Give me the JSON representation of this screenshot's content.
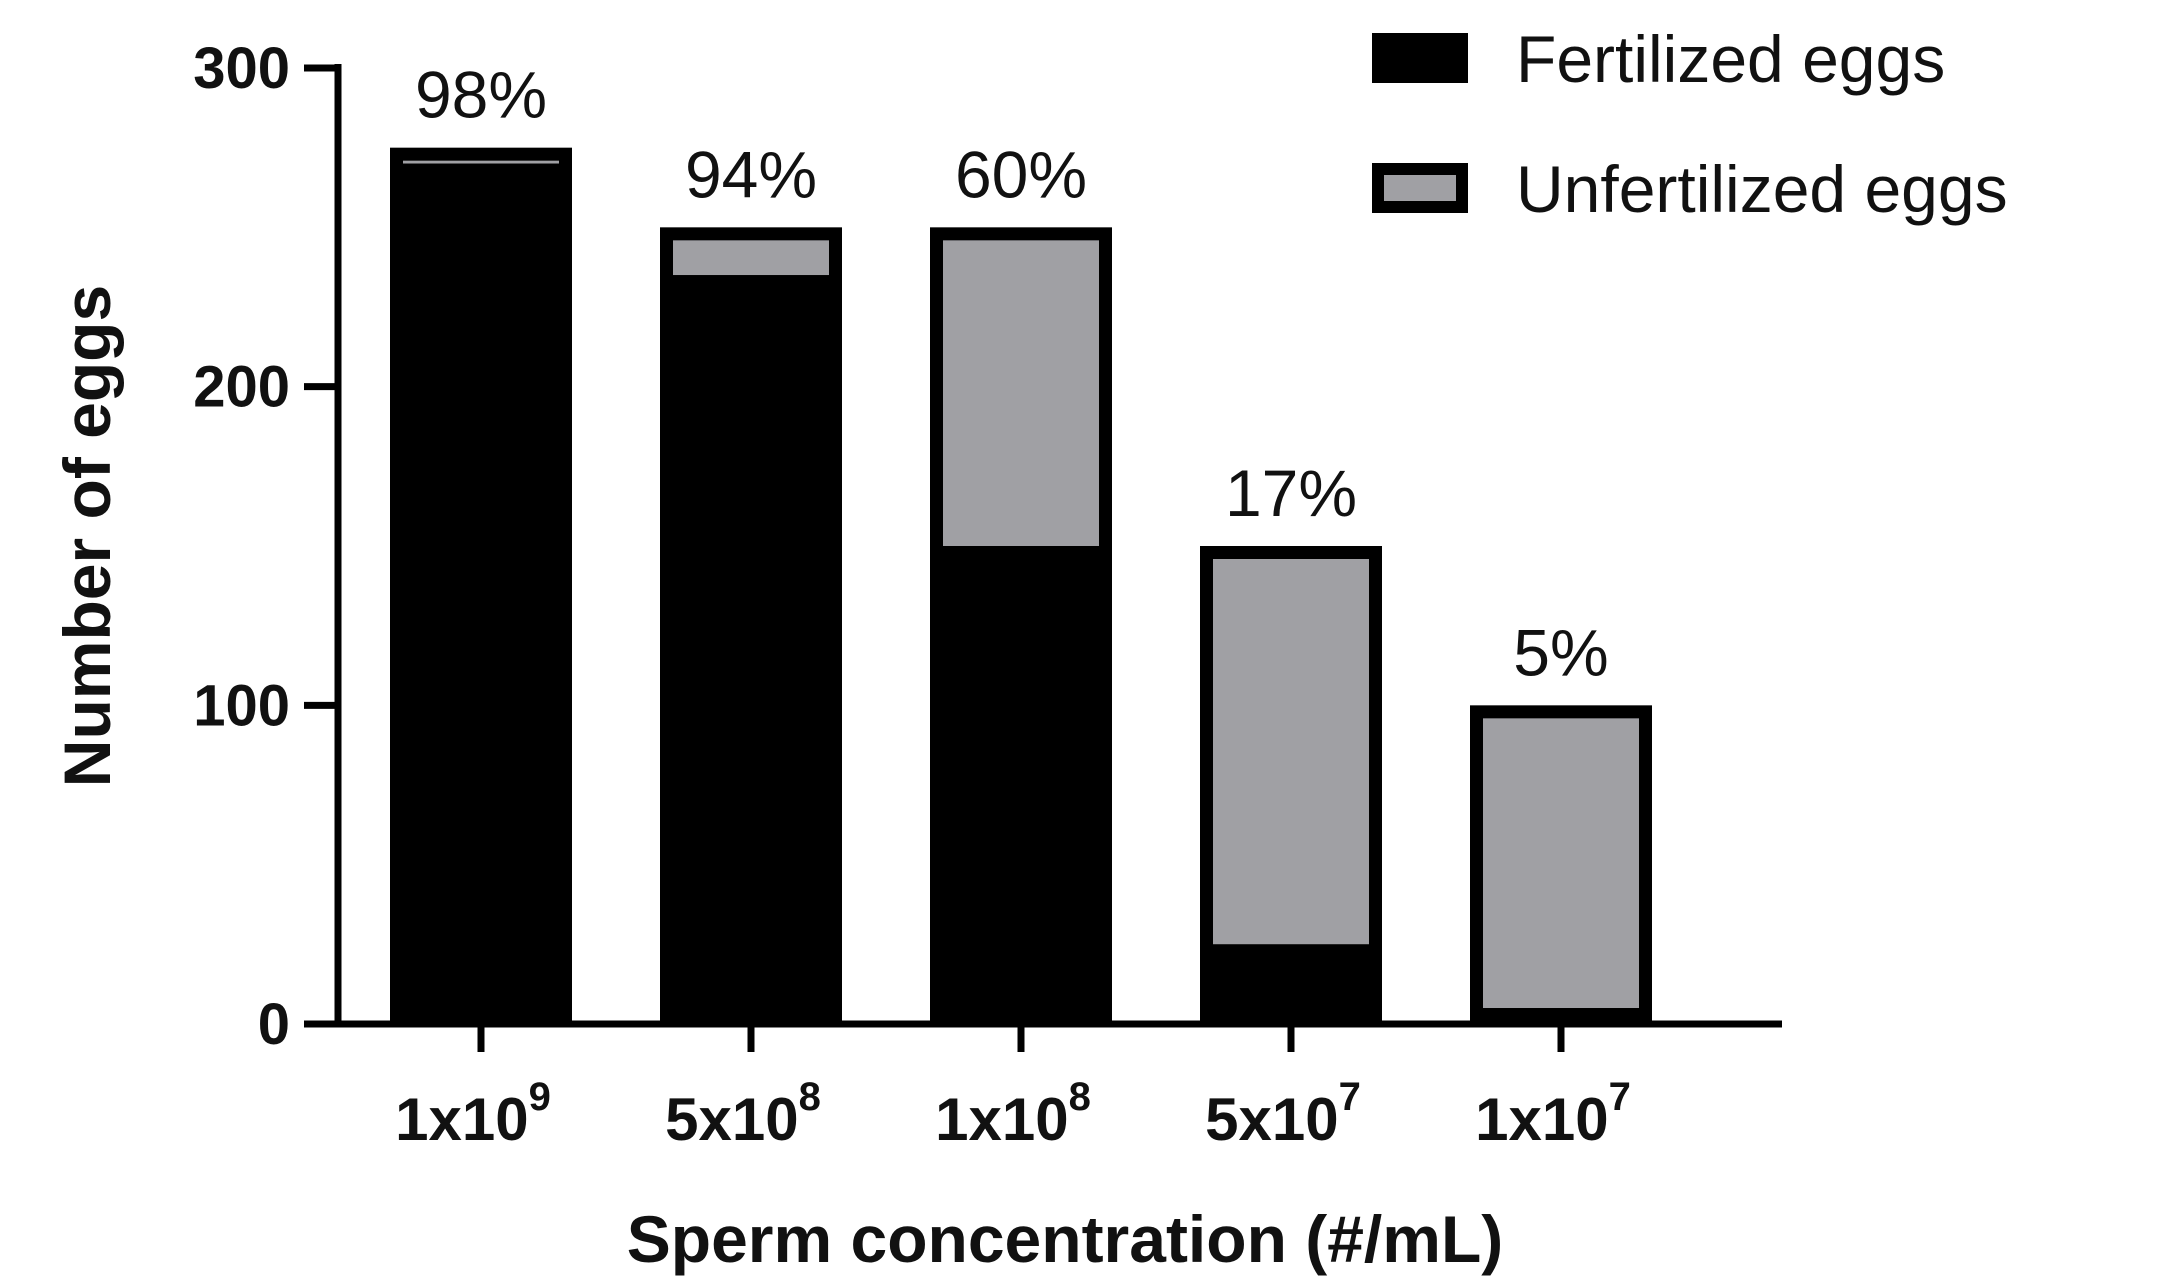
{
  "chart_data": {
    "type": "bar",
    "stacked": true,
    "title": "",
    "xlabel": "Sperm concentration (#/mL)",
    "ylabel": "Number of eggs",
    "ylim": [
      0,
      300
    ],
    "yticks": [
      0,
      100,
      200,
      300
    ],
    "ytick_labels": [
      "0",
      "100",
      "200",
      "300"
    ],
    "categories": [
      {
        "base": "1x10",
        "exp": "9"
      },
      {
        "base": "5x10",
        "exp": "8"
      },
      {
        "base": "1x10",
        "exp": "8"
      },
      {
        "base": "5x10",
        "exp": "7"
      },
      {
        "base": "1x10",
        "exp": "7"
      }
    ],
    "totals": [
      275,
      250,
      250,
      150,
      100
    ],
    "series": [
      {
        "name": "Fertilized eggs",
        "color": "#000000",
        "values": [
          270,
          235,
          150,
          25,
          5
        ]
      },
      {
        "name": "Unfertilized eggs",
        "color": "#a0a0a4",
        "values": [
          5,
          15,
          100,
          125,
          95
        ]
      }
    ],
    "percent_labels": [
      "98%",
      "94%",
      "60%",
      "17%",
      "5%"
    ],
    "legend": {
      "placement": "top-right",
      "entries": [
        "Fertilized eggs",
        "Unfertilized eggs"
      ]
    }
  }
}
